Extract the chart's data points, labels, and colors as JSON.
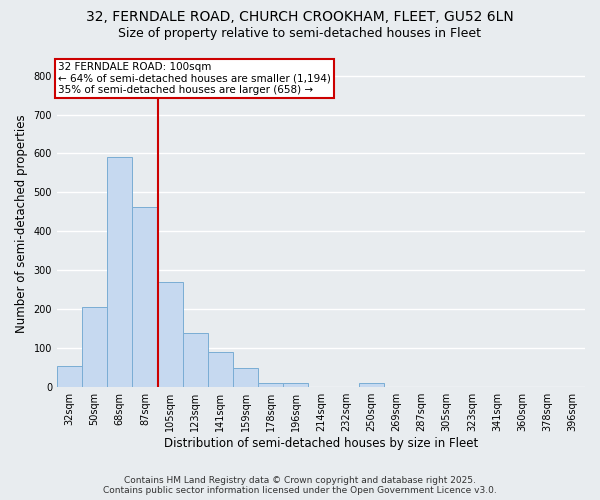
{
  "title_line1": "32, FERNDALE ROAD, CHURCH CROOKHAM, FLEET, GU52 6LN",
  "title_line2": "Size of property relative to semi-detached houses in Fleet",
  "xlabel": "Distribution of semi-detached houses by size in Fleet",
  "ylabel": "Number of semi-detached properties",
  "categories": [
    "32sqm",
    "50sqm",
    "68sqm",
    "87sqm",
    "105sqm",
    "123sqm",
    "141sqm",
    "159sqm",
    "178sqm",
    "196sqm",
    "214sqm",
    "232sqm",
    "250sqm",
    "269sqm",
    "287sqm",
    "305sqm",
    "323sqm",
    "341sqm",
    "360sqm",
    "378sqm",
    "396sqm"
  ],
  "values": [
    55,
    207,
    590,
    462,
    270,
    140,
    90,
    50,
    10,
    10,
    0,
    0,
    10,
    0,
    0,
    0,
    0,
    0,
    0,
    0,
    0
  ],
  "bar_color": "#c6d9f0",
  "bar_edge_color": "#7aadd4",
  "red_line_index": 4,
  "annotation_title": "32 FERNDALE ROAD: 100sqm",
  "annotation_line1": "← 64% of semi-detached houses are smaller (1,194)",
  "annotation_line2": "35% of semi-detached houses are larger (658) →",
  "annotation_box_color": "#ffffff",
  "annotation_box_edge_color": "#cc0000",
  "ylim": [
    0,
    840
  ],
  "yticks": [
    0,
    100,
    200,
    300,
    400,
    500,
    600,
    700,
    800
  ],
  "footer_line1": "Contains HM Land Registry data © Crown copyright and database right 2025.",
  "footer_line2": "Contains public sector information licensed under the Open Government Licence v3.0.",
  "background_color": "#e8ecef",
  "plot_bg_color": "#e8ecef",
  "grid_color": "#ffffff",
  "title_fontsize": 10,
  "subtitle_fontsize": 9,
  "tick_fontsize": 7,
  "label_fontsize": 8.5,
  "annotation_fontsize": 7.5,
  "footer_fontsize": 6.5
}
